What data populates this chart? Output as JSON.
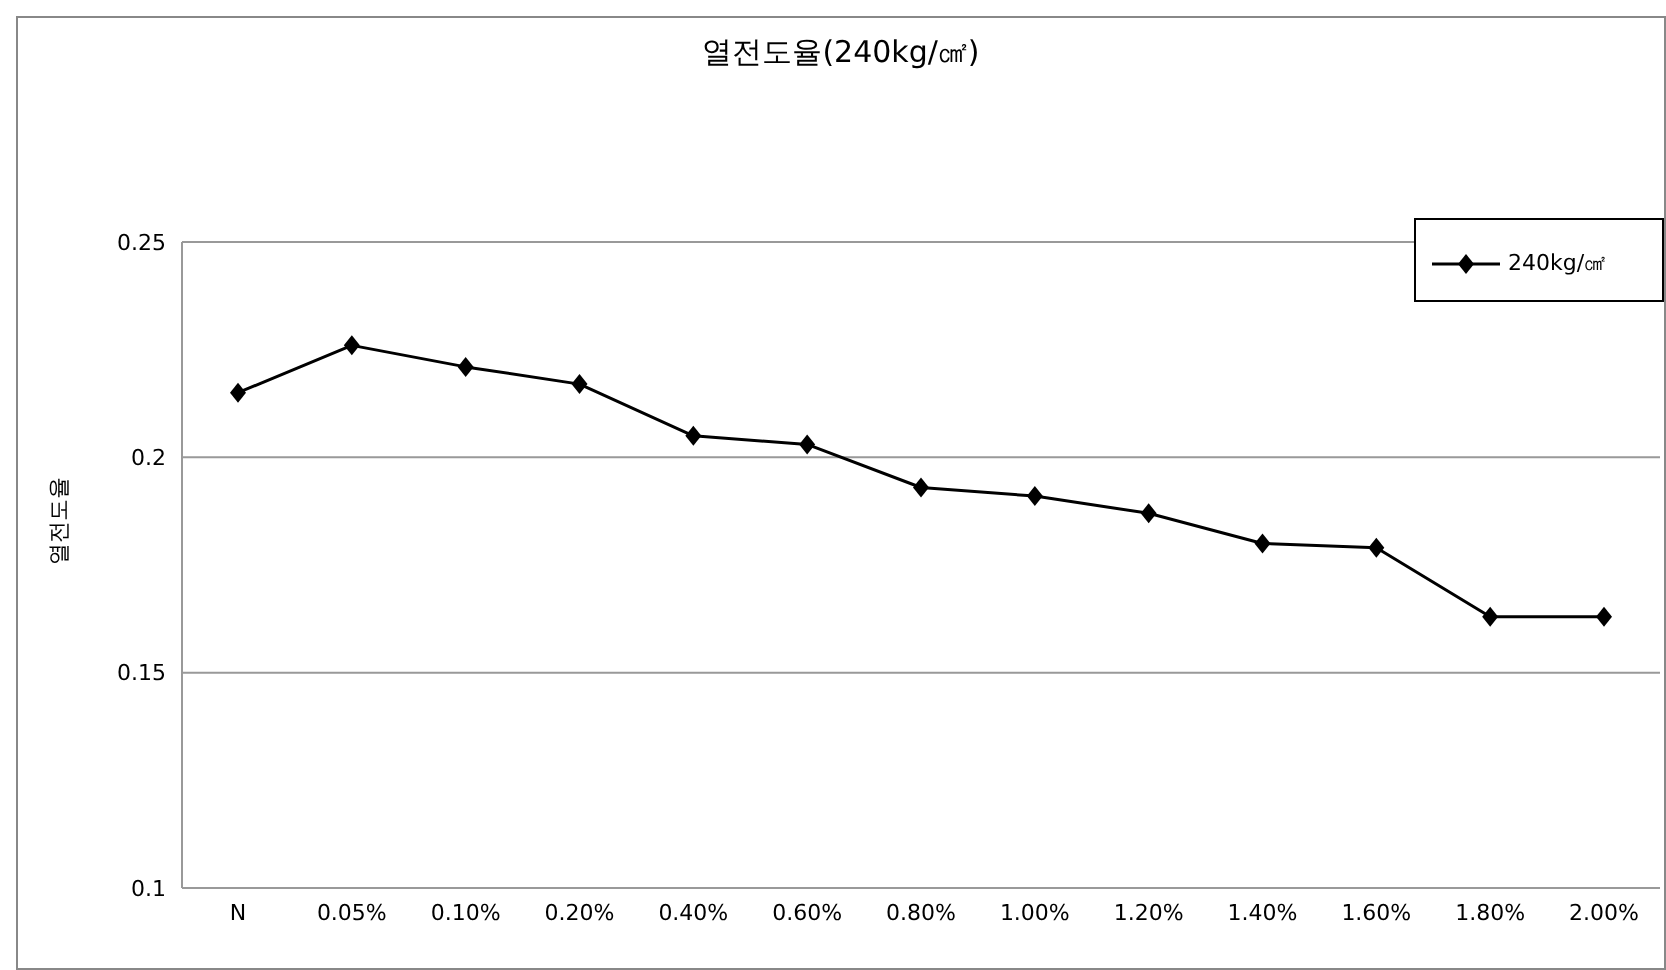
{
  "chart_data": {
    "type": "line",
    "title": "열전도율(240kg/㎠)",
    "ylabel": "열전도율",
    "categories": [
      "N",
      "0.05%",
      "0.10%",
      "0.20%",
      "0.40%",
      "0.60%",
      "0.80%",
      "1.00%",
      "1.20%",
      "1.40%",
      "1.60%",
      "1.80%",
      "2.00%"
    ],
    "series": [
      {
        "name": "240kg/㎠",
        "color": "#000000",
        "values": [
          0.215,
          0.226,
          0.221,
          0.217,
          0.205,
          0.203,
          0.193,
          0.191,
          0.187,
          0.18,
          0.179,
          0.163,
          0.163
        ]
      }
    ],
    "ylim": [
      0.1,
      0.25
    ],
    "yticks": [
      0.1,
      0.15,
      0.2,
      0.25
    ],
    "grid": "y",
    "legend": "top right",
    "marker": "diamond",
    "line_style": "solid"
  }
}
